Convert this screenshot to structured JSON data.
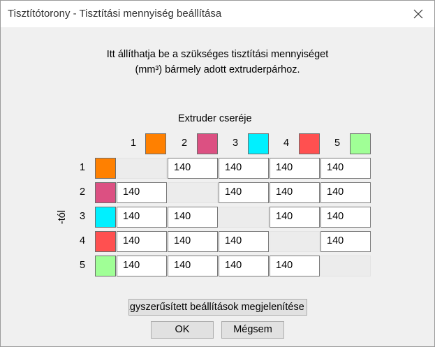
{
  "window": {
    "title": "Tisztítótorony - Tisztítási mennyiség beállítása",
    "close_icon": "close-icon"
  },
  "intro": {
    "line1": "Itt állíthatja be a szükséges tisztítási mennyiséget",
    "line2": "(mm³) bármely adott extruderpárhoz."
  },
  "grid": {
    "column_caption": "Extruder cseréje",
    "row_caption": "-tól",
    "extruders": [
      {
        "label": "1",
        "color": "#ff8000"
      },
      {
        "label": "2",
        "color": "#dc5082"
      },
      {
        "label": "3",
        "color": "#00f0ff"
      },
      {
        "label": "4",
        "color": "#ff5050"
      },
      {
        "label": "5",
        "color": "#a0ff96"
      }
    ],
    "rows": [
      [
        "",
        "140",
        "140",
        "140",
        "140"
      ],
      [
        "140",
        "",
        "140",
        "140",
        "140"
      ],
      [
        "140",
        "140",
        "",
        "140",
        "140"
      ],
      [
        "140",
        "140",
        "140",
        "",
        "140"
      ],
      [
        "140",
        "140",
        "140",
        "140",
        ""
      ]
    ]
  },
  "buttons": {
    "simplify": "Egyszerűsített beállítások megjelenítése",
    "ok": "OK",
    "cancel": "Mégsem"
  }
}
